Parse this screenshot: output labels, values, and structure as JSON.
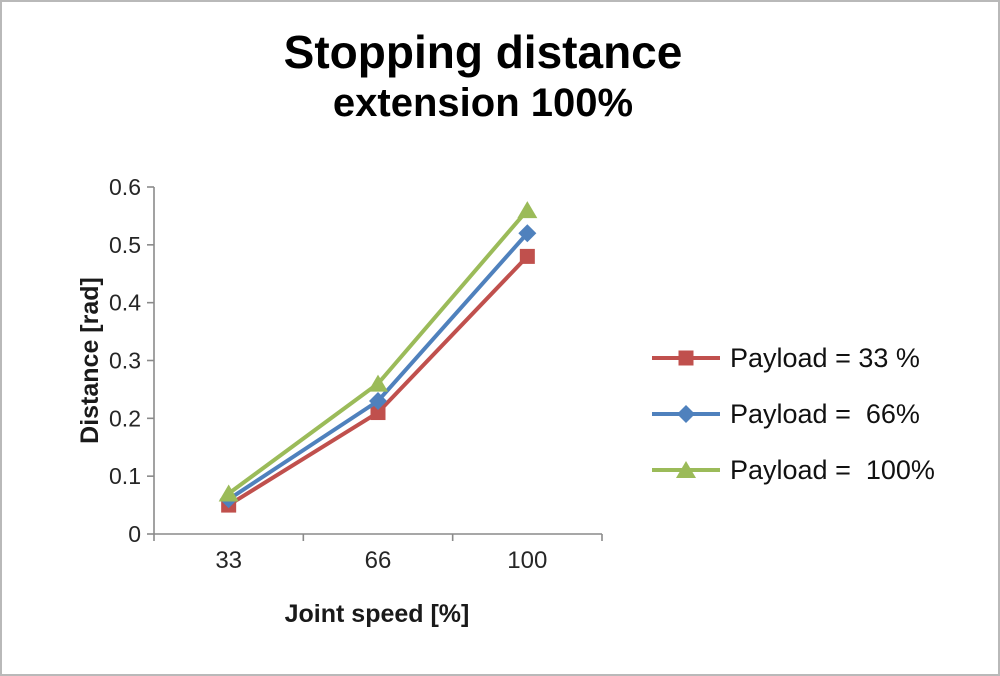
{
  "window": {
    "background": "#ffffff",
    "border_color": "#b9b9b9"
  },
  "chart_data": {
    "type": "line",
    "title": "Stopping distance",
    "subtitle": "extension 100%",
    "xlabel": "Joint speed [%]",
    "ylabel": "Distance [rad]",
    "categories": [
      "33",
      "66",
      "100"
    ],
    "series": [
      {
        "name": "Payload = 33 %",
        "values": [
          0.05,
          0.21,
          0.48
        ],
        "color": "#c0504d",
        "marker": "square"
      },
      {
        "name": "Payload =  66%",
        "values": [
          0.06,
          0.23,
          0.52
        ],
        "color": "#4f81bd",
        "marker": "diamond"
      },
      {
        "name": "Payload =  100%",
        "values": [
          0.07,
          0.26,
          0.56
        ],
        "color": "#9bbb59",
        "marker": "triangle"
      }
    ],
    "ylim": [
      0,
      0.6
    ],
    "ytick_step": 0.1,
    "yticks": [
      "0",
      "0.1",
      "0.2",
      "0.3",
      "0.4",
      "0.5",
      "0.6"
    ],
    "grid": false,
    "legend_position": "right",
    "axis_color": "#8a8a8a"
  }
}
